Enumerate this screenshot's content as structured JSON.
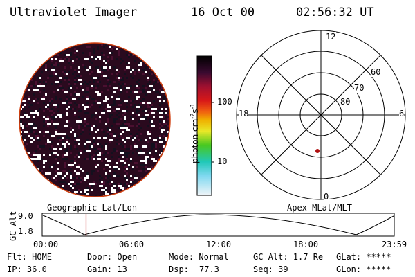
{
  "header": {
    "title": "Ultraviolet Imager",
    "date": "16 Oct 00",
    "time": "02:56:32 UT"
  },
  "colorbar": {
    "label": "photon cm",
    "label_sup1": "-2",
    "label_mid": "s",
    "label_sup2": "-1",
    "ticks": [
      "100",
      "10"
    ],
    "colors": [
      "#000000",
      "#7a0a2a",
      "#c8142a",
      "#e85020",
      "#f0a000",
      "#e8e030",
      "#60c818",
      "#18d0c8",
      "#88d8f0",
      "#e8f0f8"
    ]
  },
  "polar_grid": {
    "mlt_labels": {
      "top": "12",
      "left": "18",
      "right": "6",
      "bottom": "0"
    },
    "lat_labels": [
      "60",
      "70",
      "80"
    ],
    "marker_color": "#b01010"
  },
  "bottom": {
    "left_caption": "Geographic Lat/Lon",
    "right_caption": "Apex MLat/MLT",
    "axis_title": "GC Alt",
    "y_ticks": [
      "9.0",
      "1.8"
    ],
    "x_ticks": [
      "00:00",
      "06:00",
      "12:00",
      "18:00",
      "23:59"
    ],
    "current_time_fraction": 0.123
  },
  "status": {
    "flt": "Flt: HOME",
    "door": "Door: Open",
    "mode": "Mode: Normal",
    "gc_alt": "GC Alt: 1.7 Re",
    "glat": "GLat: *****",
    "ip": "IP: 36.0",
    "gain": "Gain: 13",
    "dsp_label": "Dsp:",
    "dsp_value": "77.3",
    "seq": "Seq: 39",
    "glon": "GLon: *****"
  }
}
